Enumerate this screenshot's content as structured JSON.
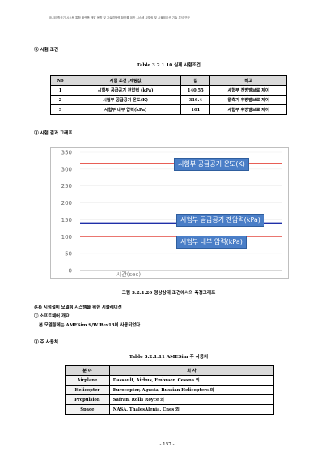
{
  "header": "국내외 항공기 시스템 통합 플랫폼 개발 동향 및 기술경쟁력 확보를 위한 시스템 모델링 및 시뮬레이션 기술 분석 연구",
  "section1": "③ 시험 조건",
  "table1": {
    "caption": "Table 3.2.1.10 실제 시험조건",
    "headers": [
      "No",
      "시험 조건 /세팅값",
      "값",
      "비고"
    ],
    "rows": [
      [
        "1",
        "시험부 공급공기 전압력 (kPa)",
        "140.55",
        "시험부 전방밸브로 제어"
      ],
      [
        "2",
        "시험부 공급공기 온도(K)",
        "316.4",
        "압축기 후방밸브로 제어"
      ],
      [
        "3",
        "시험부 내부 압력(kPa)",
        "101",
        "시험부 후방밸브로 제어"
      ]
    ]
  },
  "section2": "③ 시험 결과 그래프",
  "chart_data": {
    "type": "line",
    "xlabel": "시간(sec)",
    "ylim": [
      0,
      350
    ],
    "yticks": [
      "350",
      "300",
      "250",
      "200",
      "150",
      "100",
      "50",
      "0"
    ],
    "series": [
      {
        "name": "시험부 공급공기 온도(K)",
        "color": "#e0281e",
        "values": [
          316.4,
          316.4
        ]
      },
      {
        "name": "시험부 공급공기 전압력(kPa)",
        "color": "#1f2fa8",
        "values": [
          140.55,
          140.55
        ]
      },
      {
        "name": "시험부 내부 압력(kPa)",
        "color": "#e0281e",
        "values": [
          101,
          101
        ]
      }
    ]
  },
  "figure_caption": "그림 3.2.1.20 정상상태 조건에서의 측정그래프",
  "sub1": "(다) 시험설비 모델링 시스템을 위한 시뮬레이션",
  "sub2": "① 소프트웨어 개요",
  "sub3": "본 모델링에는 AMESim S/W Rev13이 사용되었다.",
  "section3": "③ 주 사용처",
  "table2": {
    "caption": "Table 3.2.1.11 AMESim 주 사용처",
    "headers": [
      "분 야",
      "회 사"
    ],
    "rows": [
      [
        "Airplane",
        "Dassault, Airbus, Embraer, Cessna 외"
      ],
      [
        "Helicopter",
        "Eurocopter, Agusta, Russian Helicopters 외"
      ],
      [
        "Propulsion",
        "Safran, Rolls Royce 외"
      ],
      [
        "Space",
        "NASA, ThalesAlenia, Cnes 외"
      ]
    ]
  },
  "page_number": "- 157 -"
}
